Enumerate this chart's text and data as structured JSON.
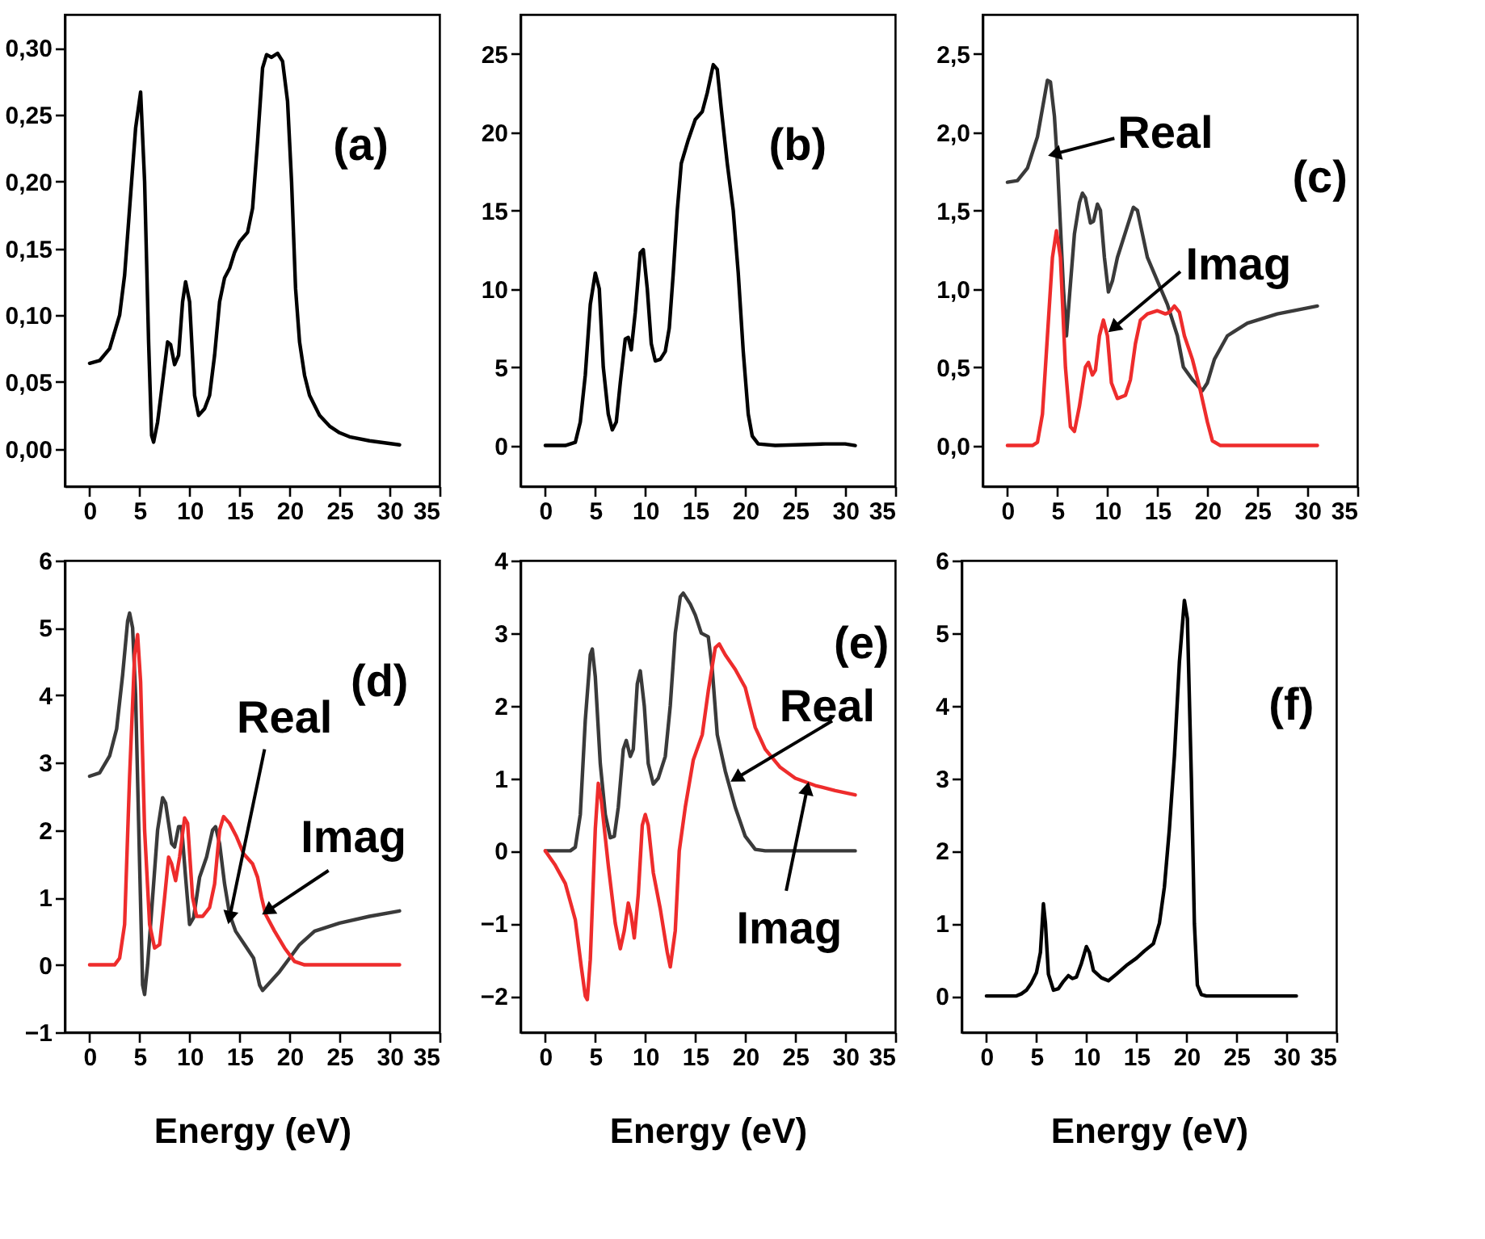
{
  "chart_data": [
    {
      "type": "line",
      "xlim": [
        -2.5,
        35
      ],
      "xticks": [
        0,
        5,
        10,
        15,
        20,
        25,
        30,
        35
      ],
      "ylim": [
        -0.028,
        0.325
      ],
      "yticks": [
        {
          "value": 0,
          "label": "0,00"
        },
        {
          "value": 0.05,
          "label": "0,05"
        },
        {
          "value": 0.1,
          "label": "0,10"
        },
        {
          "value": 0.15,
          "label": "0,15"
        },
        {
          "value": 0.2,
          "label": "0,20"
        },
        {
          "value": 0.25,
          "label": "0,25"
        },
        {
          "value": 0.3,
          "label": "0,30"
        }
      ],
      "annotations": [
        "(a)"
      ],
      "series": [
        {
          "color": "#000000",
          "x": [
            0,
            1,
            2,
            3,
            3.5,
            4,
            4.6,
            5.1,
            5.5,
            5.9,
            6.2,
            6.4,
            6.8,
            7.3,
            7.8,
            8.1,
            8.5,
            8.9,
            9.3,
            9.6,
            10,
            10.5,
            10.9,
            11.5,
            12,
            12.5,
            13,
            13.5,
            14,
            14.5,
            15,
            15.8,
            16.3,
            16.8,
            17.3,
            17.7,
            18.2,
            18.8,
            19.3,
            19.8,
            20.2,
            20.6,
            21,
            21.5,
            22,
            23,
            24,
            25,
            26,
            28,
            31
          ],
          "values": [
            0.064,
            0.066,
            0.075,
            0.1,
            0.13,
            0.18,
            0.24,
            0.267,
            0.2,
            0.08,
            0.01,
            0.005,
            0.02,
            0.05,
            0.08,
            0.078,
            0.063,
            0.07,
            0.11,
            0.125,
            0.11,
            0.04,
            0.025,
            0.03,
            0.04,
            0.07,
            0.11,
            0.128,
            0.135,
            0.147,
            0.155,
            0.162,
            0.18,
            0.23,
            0.285,
            0.295,
            0.293,
            0.296,
            0.29,
            0.26,
            0.2,
            0.12,
            0.08,
            0.055,
            0.04,
            0.025,
            0.017,
            0.012,
            0.009,
            0.006,
            0.003
          ]
        }
      ]
    },
    {
      "type": "line",
      "xlim": [
        -2.5,
        35
      ],
      "xticks": [
        0,
        5,
        10,
        15,
        20,
        25,
        30,
        35
      ],
      "ylim": [
        -2.6,
        27.5
      ],
      "yticks": [
        0,
        5,
        10,
        15,
        20,
        25
      ],
      "annotations": [
        "(b)"
      ],
      "series": [
        {
          "color": "#000000",
          "x": [
            0,
            2,
            3,
            3.5,
            4,
            4.5,
            5,
            5.4,
            5.8,
            6.3,
            6.7,
            7.1,
            7.5,
            8,
            8.3,
            8.6,
            9,
            9.5,
            9.8,
            10.2,
            10.6,
            11,
            11.5,
            12,
            12.4,
            12.8,
            13.2,
            13.6,
            14.3,
            15,
            15.7,
            16.2,
            16.8,
            17.2,
            17.6,
            18.2,
            18.8,
            19.3,
            19.8,
            20.3,
            20.7,
            21.3,
            23,
            28,
            30,
            31
          ],
          "values": [
            0,
            0,
            0.2,
            1.5,
            4.5,
            9,
            11,
            10,
            5,
            2,
            1,
            1.5,
            4,
            6.8,
            6.9,
            6.1,
            8.5,
            12.3,
            12.5,
            10,
            6.5,
            5.4,
            5.5,
            6,
            7.5,
            11,
            15,
            18,
            19.5,
            20.8,
            21.3,
            22.5,
            24.3,
            24,
            21.5,
            18,
            15,
            11,
            6,
            2,
            0.6,
            0.1,
            0,
            0.1,
            0.1,
            0
          ]
        }
      ]
    },
    {
      "type": "line",
      "xlim": [
        -2.5,
        35
      ],
      "xticks": [
        0,
        5,
        10,
        15,
        20,
        25,
        30,
        35
      ],
      "ylim": [
        -0.26,
        2.75
      ],
      "yticks": [
        {
          "value": 0,
          "label": "0,0"
        },
        {
          "value": 0.5,
          "label": "0,5"
        },
        {
          "value": 1,
          "label": "1,0"
        },
        {
          "value": 1.5,
          "label": "1,5"
        },
        {
          "value": 2,
          "label": "2,0"
        },
        {
          "value": 2.5,
          "label": "2,5"
        }
      ],
      "annotations": [
        "(c)",
        {
          "text": "Real",
          "x": 4.7,
          "y": 1.86
        },
        {
          "text": "Imag",
          "x": 10.6,
          "y": 0.75
        }
      ],
      "series": [
        {
          "color": "#3a3a3a",
          "x": [
            0,
            1,
            2,
            3,
            3.5,
            4,
            4.3,
            4.7,
            5,
            5.3,
            5.6,
            5.9,
            6.2,
            6.7,
            7.2,
            7.5,
            7.8,
            8.3,
            8.6,
            9,
            9.3,
            9.7,
            10.1,
            10.5,
            11,
            12,
            12.6,
            13,
            13.5,
            14,
            15,
            16,
            17,
            17.6,
            18.5,
            19.5,
            20,
            20.7,
            22,
            24,
            27,
            31
          ],
          "values": [
            1.68,
            1.69,
            1.77,
            1.97,
            2.15,
            2.33,
            2.32,
            2.1,
            1.8,
            1.4,
            1.0,
            0.7,
            0.95,
            1.35,
            1.55,
            1.61,
            1.58,
            1.42,
            1.43,
            1.54,
            1.5,
            1.2,
            0.98,
            1.05,
            1.2,
            1.4,
            1.52,
            1.5,
            1.35,
            1.2,
            1.05,
            0.9,
            0.7,
            0.5,
            0.42,
            0.35,
            0.4,
            0.55,
            0.7,
            0.78,
            0.84,
            0.89
          ]
        },
        {
          "color": "#ee2c2c",
          "x": [
            0,
            2.5,
            3,
            3.5,
            4,
            4.5,
            4.9,
            5.3,
            5.8,
            6.3,
            6.7,
            7.2,
            7.8,
            8.1,
            8.5,
            8.8,
            9.2,
            9.6,
            10,
            10.4,
            11,
            11.8,
            12.3,
            12.8,
            13.3,
            14,
            15,
            15.8,
            16.2,
            16.7,
            17.2,
            17.7,
            18.5,
            19.3,
            20,
            20.5,
            21.3,
            31
          ],
          "values": [
            0,
            0,
            0.02,
            0.2,
            0.7,
            1.2,
            1.37,
            1.2,
            0.5,
            0.12,
            0.09,
            0.25,
            0.5,
            0.53,
            0.45,
            0.48,
            0.7,
            0.8,
            0.7,
            0.4,
            0.3,
            0.32,
            0.42,
            0.65,
            0.8,
            0.84,
            0.86,
            0.84,
            0.85,
            0.89,
            0.85,
            0.7,
            0.55,
            0.35,
            0.15,
            0.03,
            0,
            0
          ]
        }
      ]
    },
    {
      "type": "line",
      "xlabel": "Energy (eV)",
      "xlim": [
        -2.5,
        35
      ],
      "xticks": [
        0,
        5,
        10,
        15,
        20,
        25,
        30,
        35
      ],
      "ylim": [
        -1,
        6
      ],
      "yticks": [
        -1,
        0,
        1,
        2,
        3,
        4,
        5,
        6
      ],
      "annotations": [
        "(d)",
        {
          "text": "Real",
          "x": 14,
          "y": 0.7
        },
        {
          "text": "Imag",
          "x": 17.8,
          "y": 0.8
        }
      ],
      "series": [
        {
          "color": "#3a3a3a",
          "x": [
            0,
            1,
            2,
            2.7,
            3.3,
            3.8,
            4,
            4.3,
            4.6,
            5,
            5.3,
            5.5,
            5.8,
            6.3,
            6.8,
            7.3,
            7.6,
            8.2,
            8.5,
            8.9,
            9.2,
            9.6,
            10,
            10.4,
            11,
            11.7,
            12.3,
            12.6,
            13,
            13.5,
            14,
            14.6,
            15.5,
            16.4,
            17,
            17.3,
            17.8,
            19,
            20,
            21,
            22.5,
            25,
            28,
            31
          ],
          "values": [
            2.8,
            2.85,
            3.1,
            3.5,
            4.3,
            5.1,
            5.22,
            5.0,
            4.0,
            1.5,
            -0.3,
            -0.44,
            0.0,
            1.0,
            2.0,
            2.48,
            2.4,
            1.8,
            1.75,
            2.05,
            2.05,
            1.3,
            0.6,
            0.7,
            1.3,
            1.6,
            2.0,
            2.05,
            1.8,
            1.2,
            0.75,
            0.5,
            0.3,
            0.1,
            -0.3,
            -0.38,
            -0.3,
            -0.1,
            0.1,
            0.3,
            0.5,
            0.62,
            0.72,
            0.8
          ]
        },
        {
          "color": "#ee2c2c",
          "x": [
            0,
            2.5,
            3,
            3.5,
            4,
            4.5,
            4.8,
            5.1,
            5.5,
            6,
            6.5,
            7,
            7.5,
            7.9,
            8.2,
            8.6,
            9,
            9.5,
            9.8,
            10.3,
            10.7,
            11.3,
            12,
            12.5,
            13,
            13.4,
            14,
            14.7,
            15.4,
            16.3,
            16.8,
            17.2,
            17.6,
            18.5,
            19.5,
            20.5,
            21.5,
            31
          ],
          "values": [
            0,
            0,
            0.1,
            0.6,
            2.8,
            4.6,
            4.9,
            4.2,
            2.0,
            0.6,
            0.25,
            0.3,
            1.0,
            1.6,
            1.5,
            1.25,
            1.6,
            2.18,
            2.1,
            1.0,
            0.72,
            0.72,
            0.85,
            1.2,
            2.0,
            2.2,
            2.1,
            1.9,
            1.65,
            1.5,
            1.3,
            1.0,
            0.75,
            0.5,
            0.25,
            0.05,
            0,
            0
          ]
        }
      ]
    },
    {
      "type": "line",
      "xlabel": "Energy (eV)",
      "xlim": [
        -2.5,
        35
      ],
      "xticks": [
        0,
        5,
        10,
        15,
        20,
        25,
        30,
        35
      ],
      "ylim": [
        -2.5,
        4
      ],
      "yticks": [
        -2,
        -1,
        0,
        1,
        2,
        3,
        4
      ],
      "annotations": [
        "(e)",
        {
          "text": "Real",
          "x": 19.1,
          "y": 1.0
        },
        {
          "text": "Imag",
          "x": 26.2,
          "y": 0.86
        }
      ],
      "series": [
        {
          "color": "#3a3a3a",
          "x": [
            0,
            2.5,
            3,
            3.5,
            4,
            4.5,
            4.7,
            5,
            5.5,
            6,
            6.5,
            6.9,
            7.3,
            7.8,
            8.1,
            8.5,
            8.8,
            9.2,
            9.5,
            9.9,
            10.3,
            10.8,
            11.3,
            12,
            12.5,
            13,
            13.5,
            13.8,
            14.5,
            15,
            15.6,
            16.3,
            16.7,
            17.2,
            18,
            19,
            20,
            21,
            22,
            31
          ],
          "values": [
            0,
            0,
            0.05,
            0.5,
            1.8,
            2.7,
            2.78,
            2.4,
            1.2,
            0.5,
            0.18,
            0.2,
            0.6,
            1.4,
            1.52,
            1.3,
            1.4,
            2.3,
            2.48,
            2.0,
            1.2,
            0.92,
            1.0,
            1.3,
            2.0,
            3.0,
            3.5,
            3.55,
            3.4,
            3.25,
            3.0,
            2.95,
            2.5,
            1.6,
            1.1,
            0.6,
            0.2,
            0.02,
            0,
            0
          ]
        },
        {
          "color": "#ee2c2c",
          "x": [
            0,
            1,
            2,
            3,
            3.6,
            4,
            4.2,
            4.5,
            5,
            5.3,
            5.6,
            6.3,
            7,
            7.5,
            7.9,
            8.3,
            8.6,
            8.9,
            9.3,
            9.7,
            10,
            10.3,
            10.8,
            11.5,
            12.2,
            12.5,
            13,
            13.4,
            14,
            14.8,
            15.7,
            16.3,
            17,
            17.4,
            18,
            19,
            20,
            21,
            22,
            23.5,
            25,
            27,
            29,
            31
          ],
          "values": [
            0,
            -0.2,
            -0.45,
            -0.95,
            -1.6,
            -2.0,
            -2.05,
            -1.5,
            0.3,
            0.93,
            0.7,
            -0.2,
            -1.0,
            -1.35,
            -1.1,
            -0.72,
            -0.9,
            -1.2,
            -0.6,
            0.35,
            0.5,
            0.35,
            -0.3,
            -0.8,
            -1.4,
            -1.6,
            -1.1,
            0,
            0.6,
            1.25,
            1.6,
            2.2,
            2.8,
            2.85,
            2.7,
            2.5,
            2.25,
            1.7,
            1.4,
            1.15,
            1.0,
            0.9,
            0.83,
            0.77
          ]
        }
      ]
    },
    {
      "type": "line",
      "xlabel": "Energy (eV)",
      "xlim": [
        -2.5,
        35
      ],
      "xticks": [
        0,
        5,
        10,
        15,
        20,
        25,
        30,
        35
      ],
      "ylim": [
        -0.5,
        6
      ],
      "yticks": [
        0,
        1,
        2,
        3,
        4,
        5,
        6
      ],
      "annotations": [
        "(f)"
      ],
      "series": [
        {
          "color": "#000000",
          "x": [
            0,
            3,
            3.5,
            4,
            4.5,
            5,
            5.4,
            5.7,
            5.9,
            6.2,
            6.7,
            7.2,
            7.7,
            8.2,
            8.6,
            9,
            9.5,
            10,
            10.3,
            10.7,
            11.5,
            12.2,
            13,
            14,
            15,
            15.8,
            16.7,
            17.3,
            17.8,
            18.3,
            18.8,
            19.3,
            19.8,
            20.1,
            20.5,
            20.8,
            21.1,
            21.5,
            22,
            31
          ],
          "values": [
            0,
            0,
            0.03,
            0.08,
            0.18,
            0.32,
            0.6,
            1.27,
            1.0,
            0.3,
            0.08,
            0.1,
            0.2,
            0.28,
            0.24,
            0.26,
            0.45,
            0.68,
            0.6,
            0.35,
            0.25,
            0.21,
            0.3,
            0.42,
            0.52,
            0.62,
            0.72,
            1.0,
            1.5,
            2.3,
            3.3,
            4.6,
            5.45,
            5.2,
            3.0,
            1.0,
            0.15,
            0.02,
            0,
            0
          ]
        }
      ]
    }
  ]
}
